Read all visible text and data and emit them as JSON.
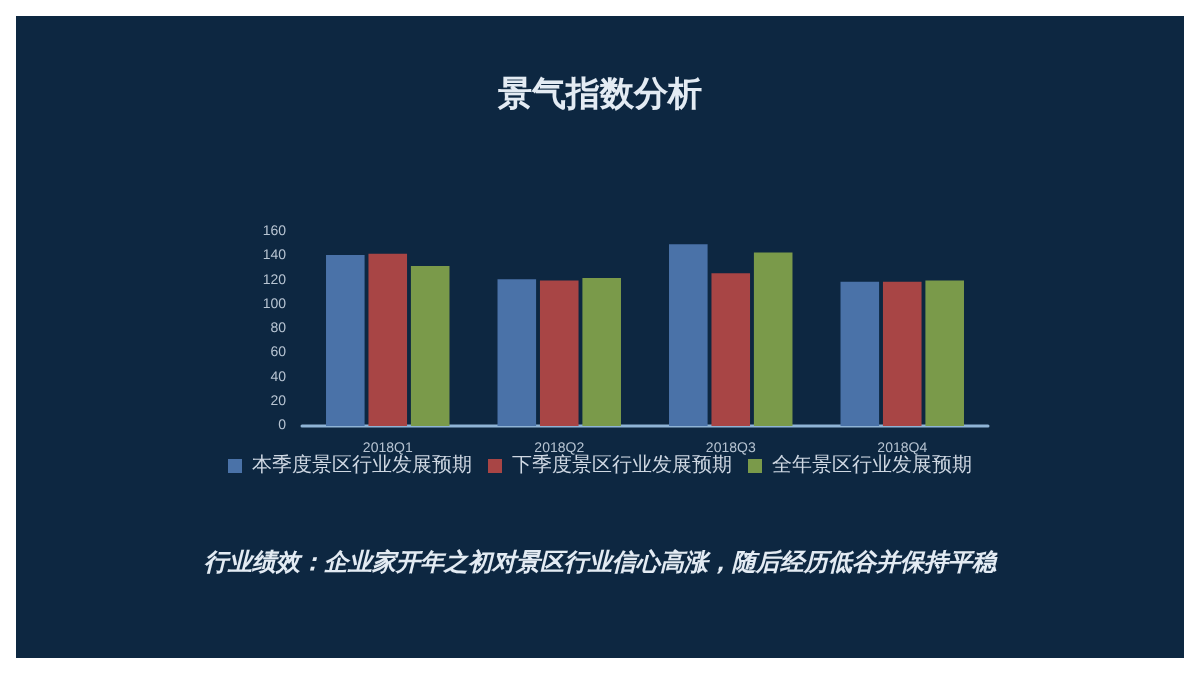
{
  "chart_data": {
    "type": "bar",
    "title": "景气指数分析",
    "categories": [
      "2018Q1",
      "2018Q2",
      "2018Q3",
      "2018Q4"
    ],
    "series": [
      {
        "name": "本季度景区行业发展预期",
        "color": "#4a72a8",
        "values": [
          141,
          121,
          150,
          119
        ]
      },
      {
        "name": "下季度景区行业发展预期",
        "color": "#a84545",
        "values": [
          142,
          120,
          126,
          119
        ]
      },
      {
        "name": "全年景区行业发展预期",
        "color": "#7a9a4a",
        "values": [
          132,
          122,
          143,
          120
        ]
      }
    ],
    "ylim": [
      0,
      160
    ],
    "yticks": [
      0,
      20,
      40,
      60,
      80,
      100,
      120,
      140,
      160
    ],
    "grid": false,
    "legend": "bottom",
    "annotations": [
      "行业绩效：企业家开年之初对景区行业信心高涨，随后经历低谷并保持平稳"
    ]
  }
}
